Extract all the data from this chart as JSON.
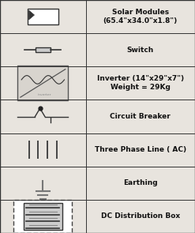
{
  "rows": [
    {
      "label": "Solar Modules\n(65.4\"x34.0\"x1.8\")",
      "symbol": "solar_module"
    },
    {
      "label": "Switch",
      "symbol": "switch"
    },
    {
      "label": "Inverter (14\"x29\"x7\")\nWeight = 29Kg",
      "symbol": "inverter"
    },
    {
      "label": "Circuit Breaker",
      "symbol": "circuit_breaker"
    },
    {
      "label": "Three Phase Line ( AC)",
      "symbol": "three_phase"
    },
    {
      "label": "Earthing",
      "symbol": "earthing"
    },
    {
      "label": "DC Distribution Box",
      "symbol": "dc_box"
    }
  ],
  "bg_color": "#e8e4de",
  "border_color": "#333333",
  "text_color": "#111111",
  "label_fontsize": 6.5,
  "fig_width": 2.47,
  "fig_height": 2.95,
  "col_split": 0.44
}
